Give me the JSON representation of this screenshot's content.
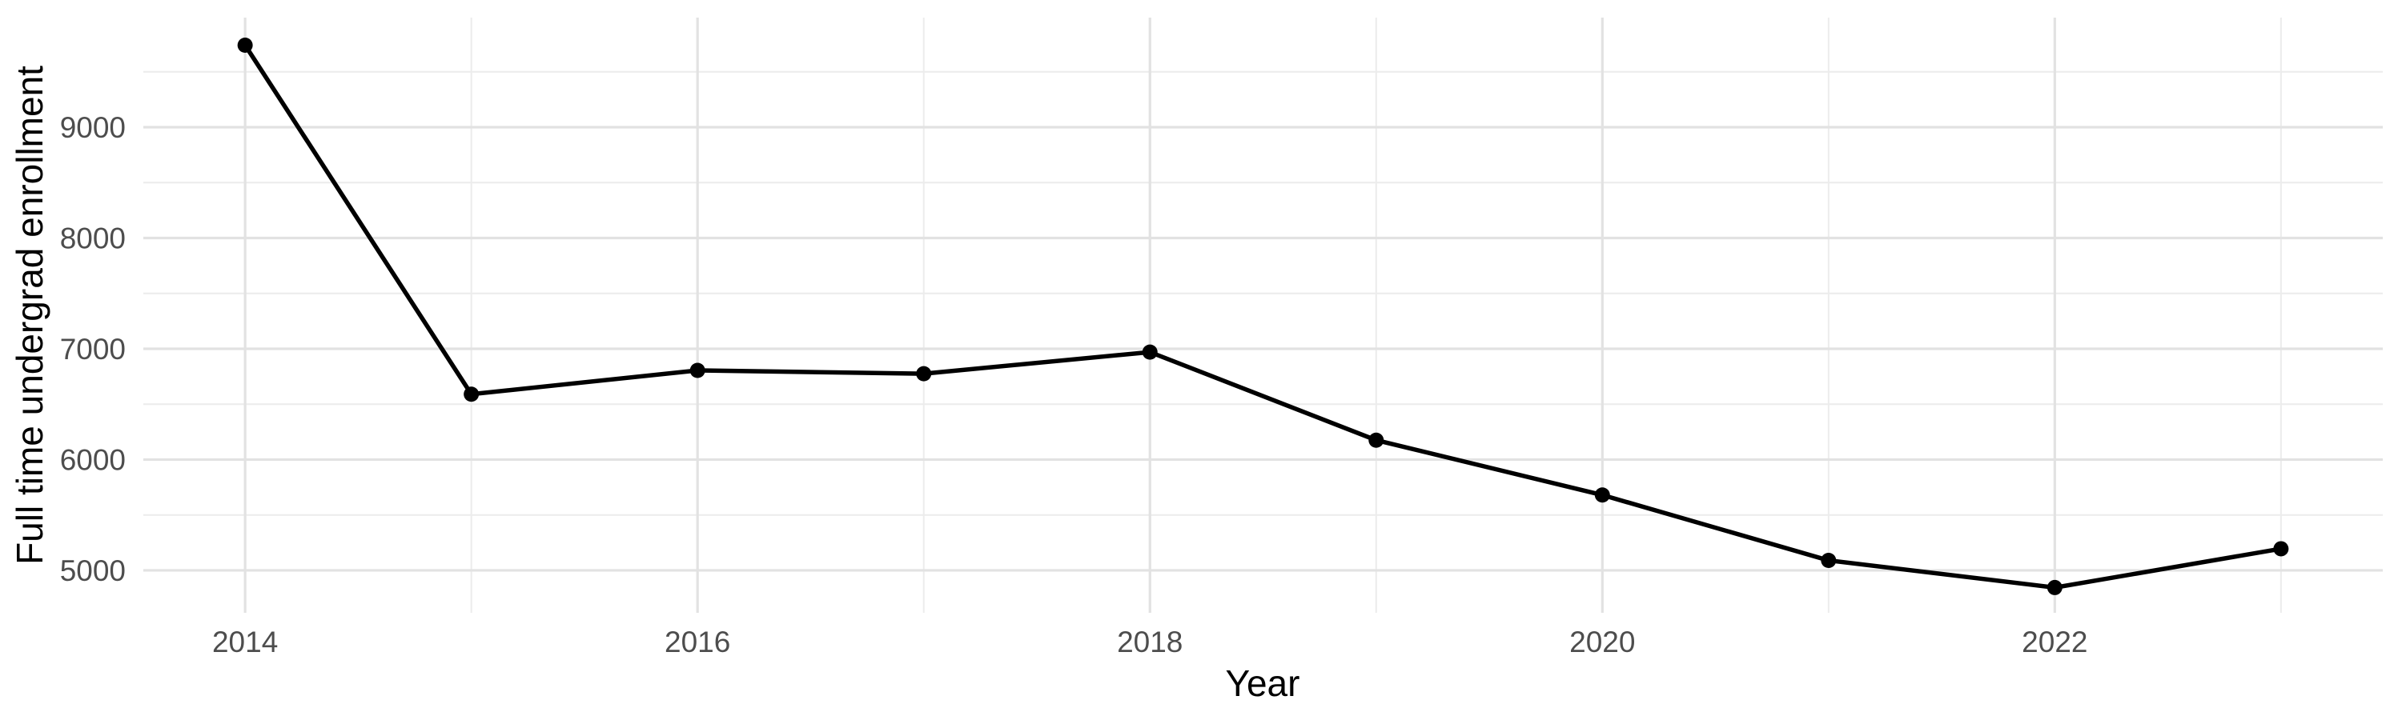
{
  "figure": {
    "background": "#FFFFFF"
  },
  "chart_data": {
    "type": "line",
    "title": "",
    "xlabel": "Year",
    "ylabel": "Full time undergrad enrollment",
    "x": [
      2014,
      2015,
      2016,
      2017,
      2018,
      2019,
      2020,
      2021,
      2022,
      2023
    ],
    "series": [
      {
        "name": "Full time undergrad enrollment",
        "values": [
          9740,
          6590,
          6805,
          6775,
          6970,
          6175,
          5680,
          5090,
          4845,
          5195
        ]
      }
    ],
    "x_ticks": [
      2014,
      2016,
      2018,
      2020,
      2022
    ],
    "x_tick_labels": [
      "2014",
      "2016",
      "2018",
      "2020",
      "2022"
    ],
    "x_minor_gridlines": [
      2015,
      2017,
      2019,
      2021,
      2023
    ],
    "y_ticks": [
      5000,
      6000,
      7000,
      8000,
      9000
    ],
    "y_tick_labels": [
      "5000",
      "6000",
      "7000",
      "8000",
      "9000"
    ],
    "y_minor_gridlines": [
      5500,
      6500,
      7500,
      8500,
      9500
    ],
    "xlim": [
      2013.55,
      2023.45
    ],
    "ylim": [
      4617,
      9989
    ],
    "grid": "major+minor",
    "legend": "none",
    "marker": "filled-circle",
    "marker_radius": 9.5,
    "colors": {
      "line": "#000000",
      "point": "#000000",
      "grid_major": "#E2E2E2",
      "grid_minor": "#ECECEC",
      "tick_label": "#4D4D4D",
      "axis_title": "#000000",
      "background": "#FFFFFF"
    }
  }
}
